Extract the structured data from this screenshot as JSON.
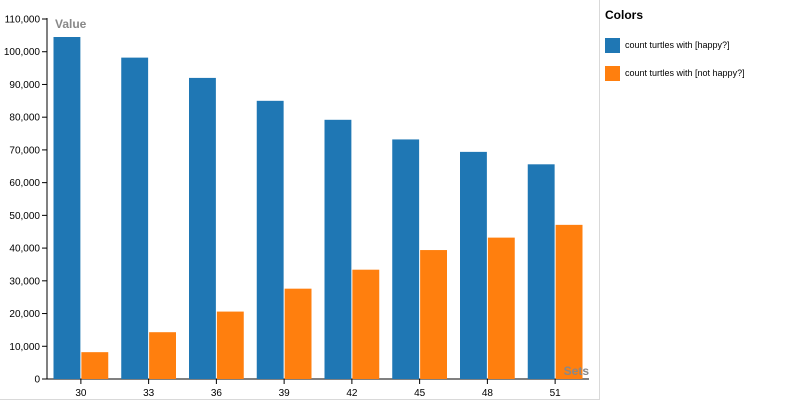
{
  "chart_data": {
    "type": "bar",
    "title": "",
    "xlabel": "Sets",
    "ylabel": "Value",
    "categories": [
      "30",
      "33",
      "36",
      "39",
      "42",
      "45",
      "48",
      "51"
    ],
    "series": [
      {
        "name": "count turtles with [happy?]",
        "color": "#1f77b4",
        "values": [
          104500,
          98200,
          92000,
          85000,
          79200,
          73200,
          69400,
          65600
        ]
      },
      {
        "name": "count turtles with [not happy?]",
        "color": "#ff7f0e",
        "values": [
          8200,
          14300,
          20600,
          27600,
          33400,
          39400,
          43200,
          47100
        ]
      }
    ],
    "ylim": [
      0,
      110000
    ],
    "yticks": [
      0,
      10000,
      20000,
      30000,
      40000,
      50000,
      60000,
      70000,
      80000,
      90000,
      100000,
      110000
    ],
    "ytick_labels": [
      "0",
      "10,000",
      "20,000",
      "30,000",
      "40,000",
      "50,000",
      "60,000",
      "70,000",
      "80,000",
      "90,000",
      "100,000",
      "110,000"
    ],
    "grid": false,
    "legend_position": "right"
  },
  "legend": {
    "title": "Colors",
    "items": [
      {
        "label": "count turtles with [happy?]",
        "color": "#1f77b4"
      },
      {
        "label": "count turtles with [not happy?]",
        "color": "#ff7f0e"
      }
    ]
  }
}
